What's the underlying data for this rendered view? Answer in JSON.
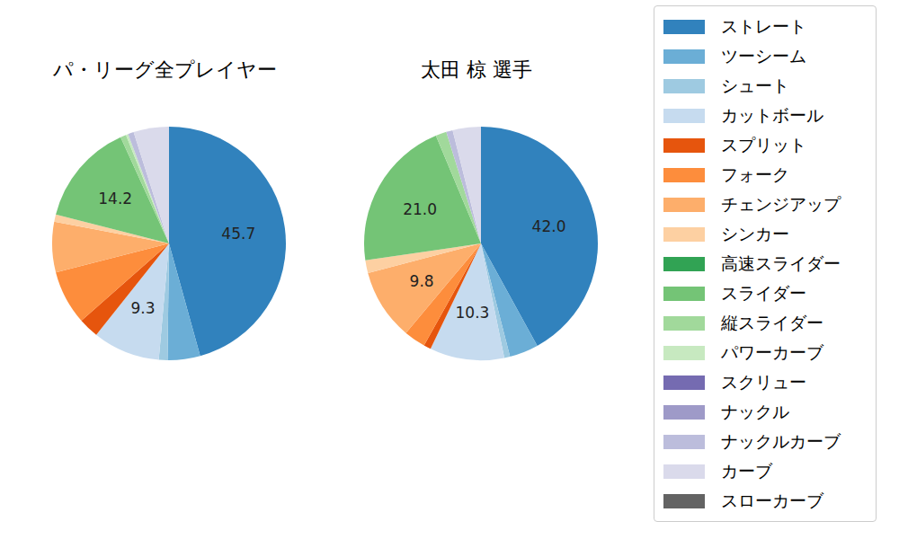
{
  "chart_data": [
    {
      "type": "pie",
      "title": "パ・リーグ全プレイヤー",
      "legend": "right",
      "data_labels": true,
      "categories": [
        "ストレート",
        "ツーシーム",
        "シュート",
        "カットボール",
        "スプリット",
        "フォーク",
        "チェンジアップ",
        "シンカー",
        "高速スライダー",
        "スライダー",
        "縦スライダー",
        "パワーカーブ",
        "スクリュー",
        "ナックル",
        "ナックルカーブ",
        "カーブ",
        "スローカーブ"
      ],
      "colors": [
        "#3182bd",
        "#6baed6",
        "#9ecae1",
        "#c6dbef",
        "#e6550d",
        "#fd8d3c",
        "#fdae6b",
        "#fdd0a2",
        "#31a354",
        "#74c476",
        "#a1d99b",
        "#c7e9c0",
        "#756bb1",
        "#9e9ac8",
        "#bcbddc",
        "#dadaeb",
        "#636363"
      ],
      "values": [
        45.7,
        4.5,
        1.2,
        9.3,
        2.8,
        7.5,
        7.0,
        1.0,
        0,
        14.2,
        0.8,
        0.3,
        0,
        0,
        0.8,
        4.9,
        0
      ],
      "value_labels": [
        "45.7",
        null,
        null,
        "9.3",
        null,
        null,
        null,
        null,
        null,
        "14.2",
        null,
        null,
        null,
        null,
        null,
        null,
        null
      ]
    },
    {
      "type": "pie",
      "title": "太田 椋  選手",
      "legend": "right",
      "data_labels": true,
      "categories": [
        "ストレート",
        "ツーシーム",
        "シュート",
        "カットボール",
        "スプリット",
        "フォーク",
        "チェンジアップ",
        "シンカー",
        "高速スライダー",
        "スライダー",
        "縦スライダー",
        "パワーカーブ",
        "スクリュー",
        "ナックル",
        "ナックルカーブ",
        "カーブ",
        "スローカーブ"
      ],
      "colors": [
        "#3182bd",
        "#6baed6",
        "#9ecae1",
        "#c6dbef",
        "#e6550d",
        "#fd8d3c",
        "#fdae6b",
        "#fdd0a2",
        "#31a354",
        "#74c476",
        "#a1d99b",
        "#c7e9c0",
        "#756bb1",
        "#9e9ac8",
        "#bcbddc",
        "#dadaeb",
        "#636363"
      ],
      "values": [
        42.0,
        4.0,
        0.8,
        10.3,
        1.0,
        3.0,
        9.8,
        1.8,
        0,
        21.0,
        1.5,
        0,
        0,
        0,
        0.9,
        3.9,
        0
      ],
      "value_labels": [
        "42.0",
        null,
        null,
        "10.3",
        null,
        null,
        "9.8",
        null,
        null,
        "21.0",
        null,
        null,
        null,
        null,
        null,
        null,
        null
      ]
    }
  ]
}
